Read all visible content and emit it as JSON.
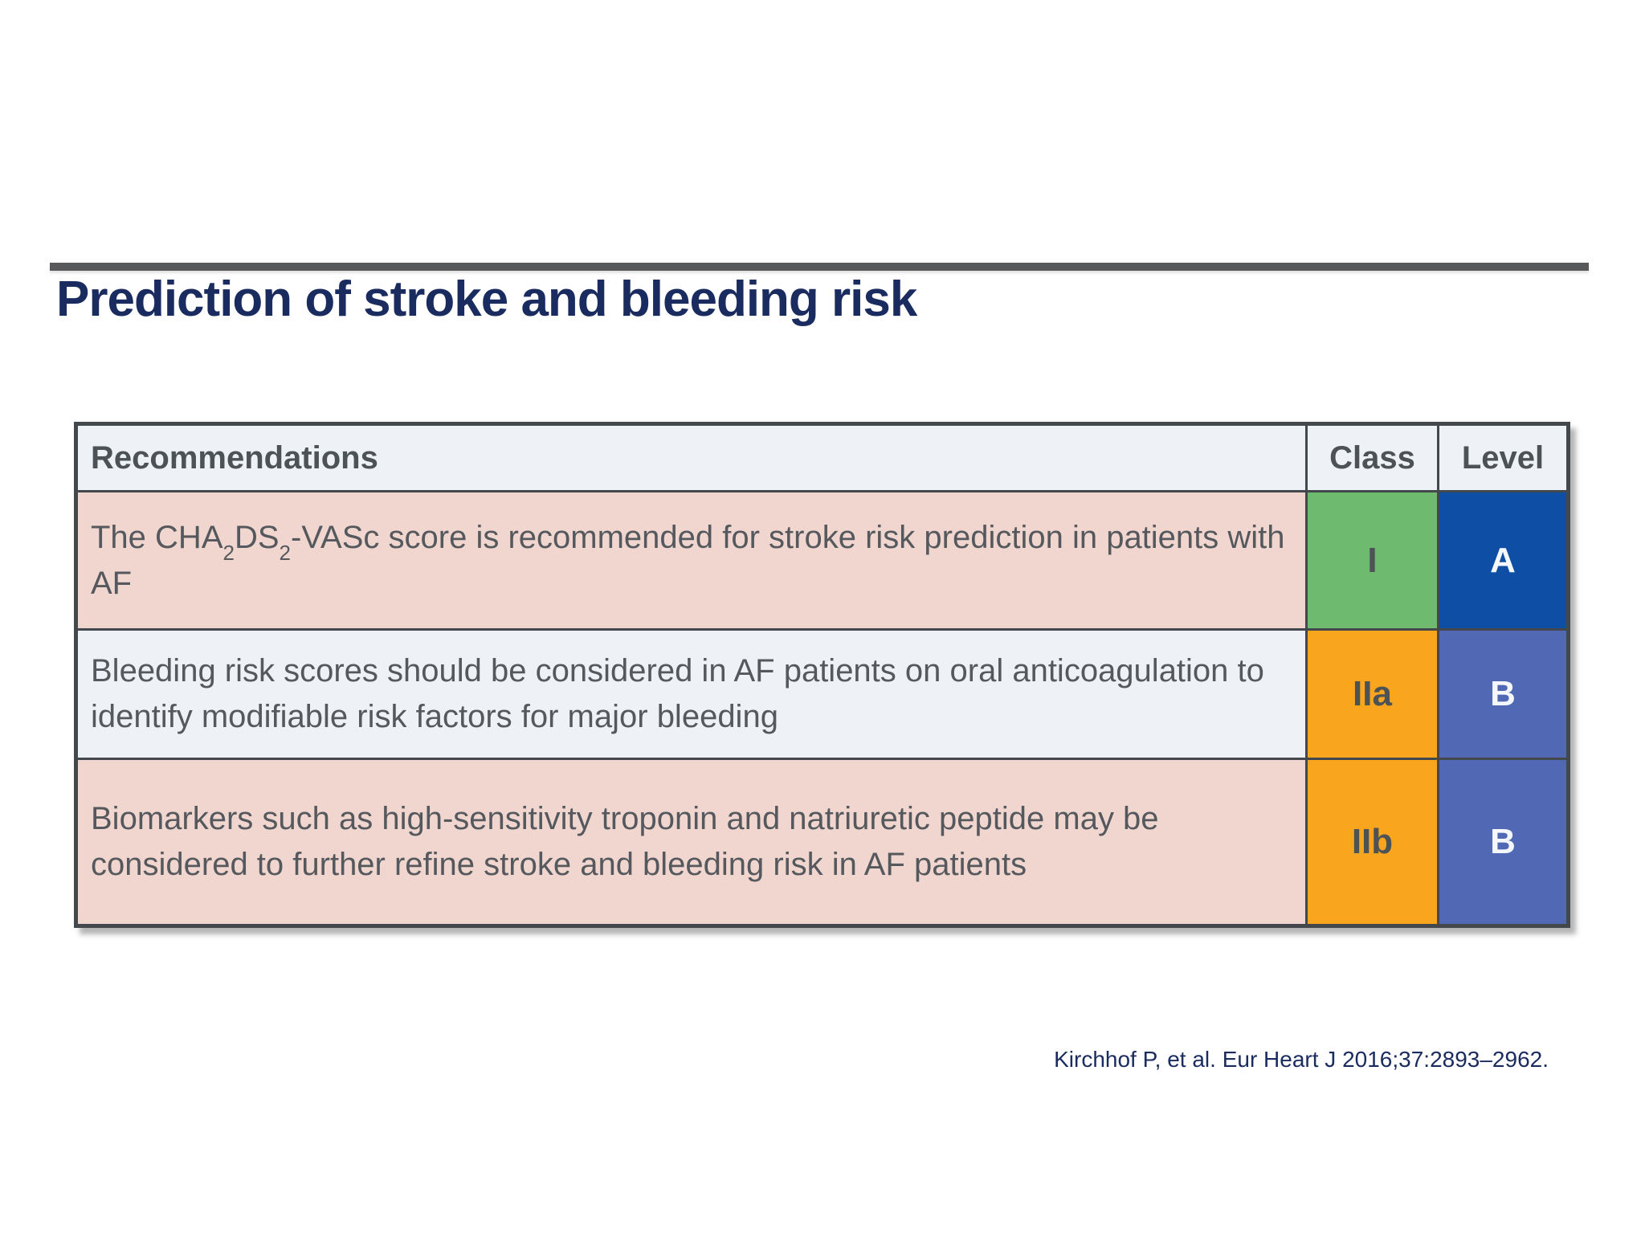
{
  "slide": {
    "title": "Prediction of stroke and bleeding risk",
    "citation": "Kirchhof P, et al. Eur Heart J 2016;37:2893–2962."
  },
  "colors": {
    "title_navy": "#1a2b5f",
    "top_bar_gray": "#58595b",
    "table_border_gray": "#43484c",
    "header_bg": "#eef1f6",
    "row_pink": "#f1d6d0",
    "row_light_blue": "#eef1f6",
    "class_I_green": "#6eba6e",
    "class_II_orange": "#f9a51d",
    "level_A_dark_blue": "#0e4ea4",
    "level_B_medium_blue": "#5168b5",
    "cell_text_gray": "#55595d"
  },
  "table": {
    "headers": {
      "recommendations": "Recommendations",
      "class": "Class",
      "level": "Level"
    },
    "rows": [
      {
        "recommendation_rich": [
          {
            "t": "The CHA"
          },
          {
            "t": "2",
            "sub": true
          },
          {
            "t": "DS"
          },
          {
            "t": "2",
            "sub": true
          },
          {
            "t": "-VASc score is recommended for stroke risk prediction in patients with AF"
          }
        ],
        "class": "I",
        "level": "A",
        "row_bg": "#f1d6d0",
        "class_bg": "#6eba6e",
        "level_bg": "#0e4ea4"
      },
      {
        "recommendation_rich": [
          {
            "t": "Bleeding risk scores should be considered in AF patients on oral anticoagulation to identify modifiable risk factors for major bleeding"
          }
        ],
        "class": "IIa",
        "level": "B",
        "row_bg": "#eef1f6",
        "class_bg": "#f9a51d",
        "level_bg": "#5168b5"
      },
      {
        "recommendation_rich": [
          {
            "t": "Biomarkers such as high-sensitivity troponin and natriuretic peptide may be considered to further refine stroke and bleeding risk in AF patients"
          }
        ],
        "class": "IIb",
        "level": "B",
        "row_bg": "#f1d6d0",
        "class_bg": "#f9a51d",
        "level_bg": "#5168b5"
      }
    ]
  }
}
